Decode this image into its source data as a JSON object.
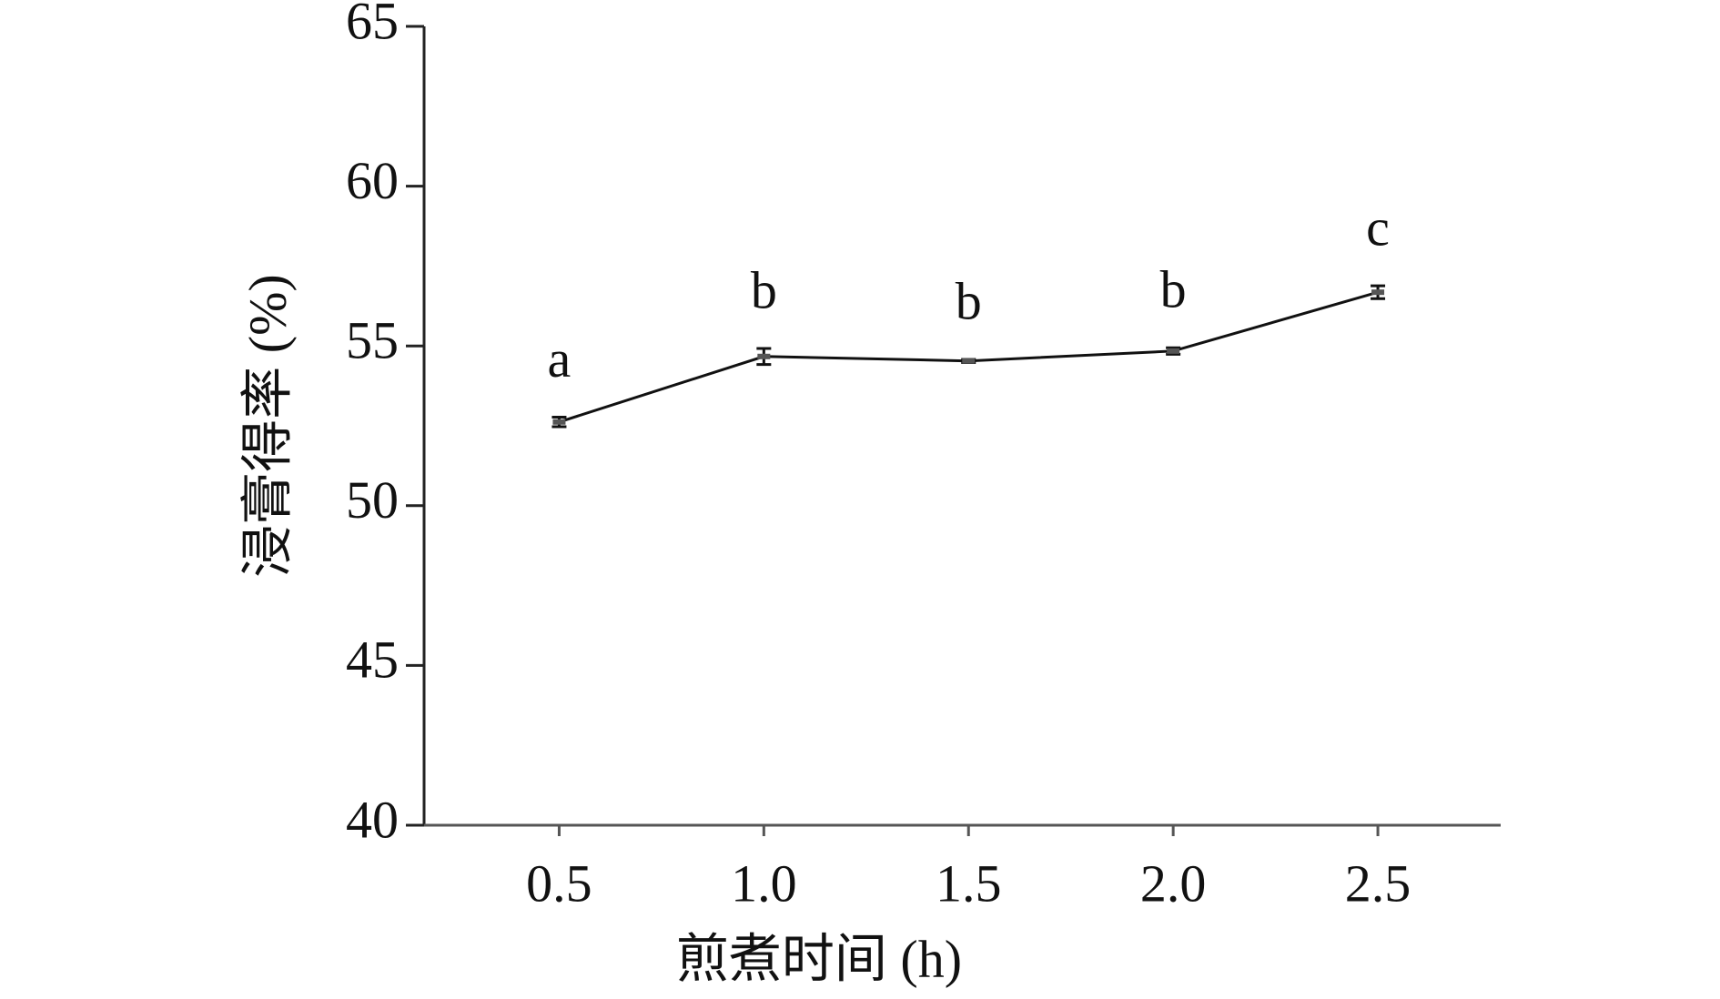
{
  "chart_data": {
    "type": "line",
    "xlabel": "煎煮时间 (h)",
    "ylabel": "浸膏得率 (%)",
    "x": [
      0.5,
      1.0,
      1.5,
      2.0,
      2.5
    ],
    "values": [
      52.62,
      54.67,
      54.53,
      54.84,
      56.68
    ],
    "errors": [
      0.15,
      0.25,
      0.05,
      0.1,
      0.2
    ],
    "annotations": [
      "a",
      "b",
      "b",
      "b",
      "c"
    ],
    "color": "#111111",
    "xlim": [
      0.17,
      2.8
    ],
    "xticks": [
      0.5,
      {
        "value": 1,
        "label": "1.0"
      },
      1.5,
      {
        "value": 2,
        "label": "2.0"
      },
      2.5
    ],
    "ylim": [
      40,
      65
    ],
    "yticks": [
      40,
      45,
      50,
      55,
      60,
      65
    ]
  }
}
